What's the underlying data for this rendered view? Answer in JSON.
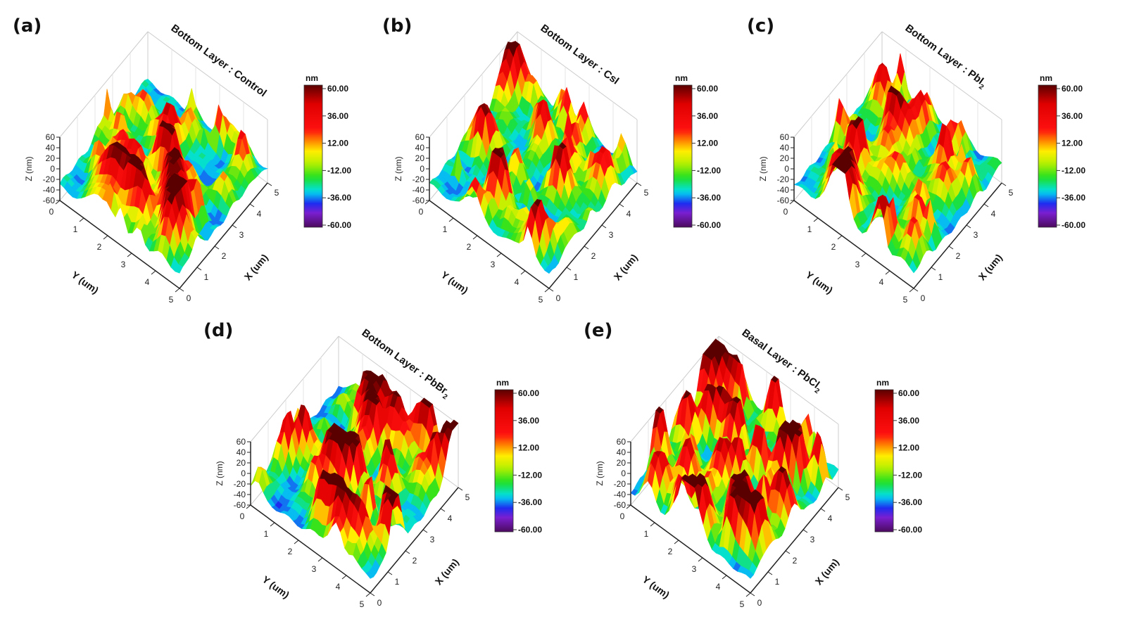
{
  "chart_data": [
    {
      "panel_label": "(a)",
      "type": "surface",
      "title": "Bottom Layer : Control",
      "title_sub": "",
      "xlabel": "X (um)",
      "ylabel": "Y (um)",
      "zlabel": "Z (nm)",
      "xticks": [
        "0",
        "1",
        "2",
        "3",
        "4",
        "5"
      ],
      "yticks": [
        "0",
        "1",
        "2",
        "3",
        "4",
        "5"
      ],
      "zticks": [
        "-60",
        "-40",
        "-20",
        "0",
        "20",
        "40",
        "60"
      ],
      "xlim": [
        0,
        5
      ],
      "ylim": [
        0,
        5
      ],
      "zlim": [
        -60,
        60
      ],
      "colorbar": {
        "unit": "nm",
        "ticks": [
          "60.00",
          "36.00",
          "12.00",
          "-12.00",
          "-36.00",
          "-60.00"
        ],
        "range": [
          -60,
          60
        ]
      }
    },
    {
      "panel_label": "(b)",
      "type": "surface",
      "title": "Bottom Layer : CsI",
      "title_sub": "",
      "xlabel": "X (um)",
      "ylabel": "Y (um)",
      "zlabel": "Z (nm)",
      "xticks": [
        "0",
        "1",
        "2",
        "3",
        "4",
        "5"
      ],
      "yticks": [
        "0",
        "1",
        "2",
        "3",
        "4",
        "5"
      ],
      "zticks": [
        "-60",
        "-40",
        "-20",
        "0",
        "20",
        "40",
        "60"
      ],
      "xlim": [
        0,
        5
      ],
      "ylim": [
        0,
        5
      ],
      "zlim": [
        -60,
        60
      ],
      "colorbar": {
        "unit": "nm",
        "ticks": [
          "60.00",
          "36.00",
          "12.00",
          "-12.00",
          "-36.00",
          "-60.00"
        ],
        "range": [
          -60,
          60
        ]
      }
    },
    {
      "panel_label": "(c)",
      "type": "surface",
      "title": "Bottom Layer : PbI",
      "title_sub": "2",
      "xlabel": "X (um)",
      "ylabel": "Y (um)",
      "zlabel": "Z (nm)",
      "xticks": [
        "0",
        "1",
        "2",
        "3",
        "4",
        "5"
      ],
      "yticks": [
        "0",
        "1",
        "2",
        "3",
        "4",
        "5"
      ],
      "zticks": [
        "-60",
        "-40",
        "-20",
        "0",
        "20",
        "40",
        "60"
      ],
      "xlim": [
        0,
        5
      ],
      "ylim": [
        0,
        5
      ],
      "zlim": [
        -60,
        60
      ],
      "colorbar": {
        "unit": "nm",
        "ticks": [
          "60.00",
          "36.00",
          "12.00",
          "-12.00",
          "-36.00",
          "-60.00"
        ],
        "range": [
          -60,
          60
        ]
      }
    },
    {
      "panel_label": "(d)",
      "type": "surface",
      "title": "Bottom Layer : PbBr",
      "title_sub": "2",
      "xlabel": "X (um)",
      "ylabel": "Y (um)",
      "zlabel": "Z (nm)",
      "xticks": [
        "0",
        "1",
        "2",
        "3",
        "4",
        "5"
      ],
      "yticks": [
        "0",
        "1",
        "2",
        "3",
        "4",
        "5"
      ],
      "zticks": [
        "-60",
        "-40",
        "-20",
        "0",
        "20",
        "40",
        "60"
      ],
      "xlim": [
        0,
        5
      ],
      "ylim": [
        0,
        5
      ],
      "zlim": [
        -60,
        60
      ],
      "colorbar": {
        "unit": "nm",
        "ticks": [
          "60.00",
          "36.00",
          "12.00",
          "-12.00",
          "-36.00",
          "-60.00"
        ],
        "range": [
          -60,
          60
        ]
      }
    },
    {
      "panel_label": "(e)",
      "type": "surface",
      "title": "Basal Layer : PbCl",
      "title_sub": "2",
      "xlabel": "X (um)",
      "ylabel": "Y (um)",
      "zlabel": "Z (nm)",
      "xticks": [
        "0",
        "1",
        "2",
        "3",
        "4",
        "5"
      ],
      "yticks": [
        "0",
        "1",
        "2",
        "3",
        "4",
        "5"
      ],
      "zticks": [
        "-60",
        "-40",
        "-20",
        "0",
        "20",
        "40",
        "60"
      ],
      "xlim": [
        0,
        5
      ],
      "ylim": [
        0,
        5
      ],
      "zlim": [
        -60,
        60
      ],
      "colorbar": {
        "unit": "nm",
        "ticks": [
          "60.00",
          "36.00",
          "12.00",
          "-12.00",
          "-36.00",
          "-60.00"
        ],
        "range": [
          -60,
          60
        ]
      }
    }
  ],
  "colormap": [
    "#4b0a5e",
    "#7a1fd0",
    "#1e2cf0",
    "#00e0f0",
    "#20e020",
    "#b8f000",
    "#ffee00",
    "#ff7a00",
    "#ff1010",
    "#e00000",
    "#5a0000"
  ]
}
